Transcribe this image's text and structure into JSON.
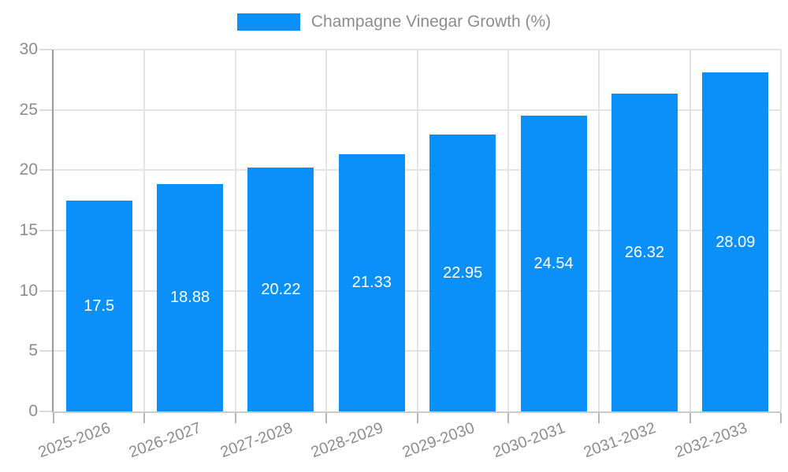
{
  "legend": {
    "label": "Champagne Vinegar Growth (%)"
  },
  "chart_data": {
    "type": "bar",
    "title": "",
    "legend": "Champagne Vinegar Growth (%)",
    "legend_position": "top-center",
    "categories": [
      "2025-2026",
      "2026-2027",
      "2027-2028",
      "2028-2029",
      "2029-2030",
      "2030-2031",
      "2031-2032",
      "2032-2033"
    ],
    "values": [
      17.5,
      18.88,
      20.22,
      21.33,
      22.95,
      24.54,
      26.32,
      28.09
    ],
    "value_labels": [
      "17.5",
      "18.88",
      "20.22",
      "21.33",
      "22.95",
      "24.54",
      "26.32",
      "28.09"
    ],
    "xlabel": "",
    "ylabel": "",
    "ylim": [
      0,
      30
    ],
    "yticks": [
      0,
      5,
      10,
      15,
      20,
      25,
      30
    ],
    "grid": true,
    "bar_color": "#0a90f8",
    "value_label_color": "#ffffff",
    "axis_text_color": "#8c8c8c",
    "gridline_color": "#e4e4e4"
  }
}
